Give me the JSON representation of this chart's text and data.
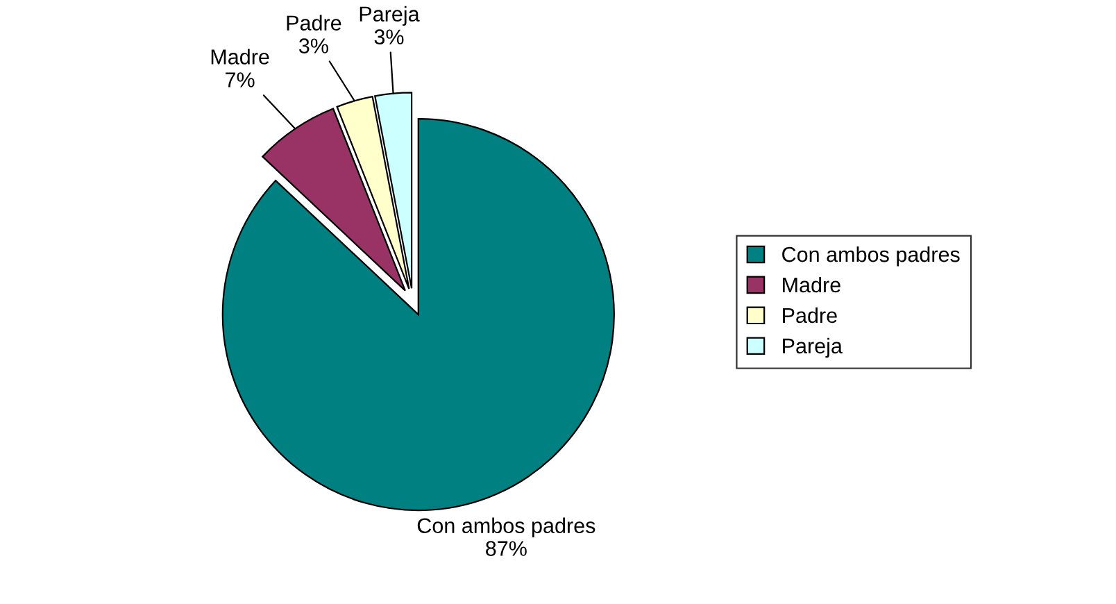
{
  "chart_data": {
    "type": "pie",
    "categories": [
      "Con ambos padres",
      "Madre",
      "Padre",
      "Pareja"
    ],
    "values": [
      87,
      7,
      3,
      3
    ],
    "value_labels": [
      "87%",
      "7%",
      "3%",
      "3%"
    ],
    "colors": [
      "#008080",
      "#993366",
      "#ffffcc",
      "#ccffff"
    ],
    "legend": "right"
  }
}
